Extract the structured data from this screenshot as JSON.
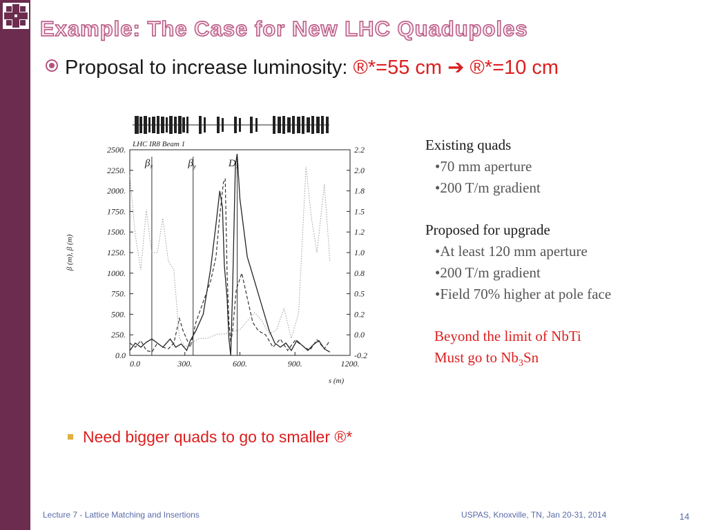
{
  "title": "Example: The Case for New LHC Quadupoles",
  "bullet1": {
    "prefix": "Proposal to increase luminosity: ",
    "sym1": "®",
    "star1": "*",
    "val1": "=55 cm",
    "arrow": "➔",
    "sym2": "®",
    "star2": "*",
    "val2": "=10 cm"
  },
  "bullet2": {
    "text": "Need bigger quads to go to smaller ",
    "sym": "®",
    "star": "*"
  },
  "right": {
    "existing_heading": "Existing quads",
    "existing_items": [
      "70 mm aperture",
      "200 T/m gradient"
    ],
    "proposed_heading": "Proposed for upgrade",
    "proposed_items": [
      "At least 120 mm aperture",
      "200 T/m gradient",
      "Field 70% higher at pole face"
    ],
    "limit_line": "Beyond the limit of NbTi",
    "must_prefix": "Must go to Nb",
    "must_sub": "3",
    "must_suffix": "Sn"
  },
  "footer": {
    "left": "Lecture 7 - Lattice Matching and Insertions",
    "middle": "USPAS, Knoxville, TN, Jan 20-31, 2014",
    "page": "14"
  },
  "chart_data": {
    "type": "line",
    "title": "LHC IR8 Beam 1",
    "xlabel": "s (m)",
    "ylabel": "β (m), β (m)",
    "xlim": [
      0,
      1200
    ],
    "ylim": [
      0,
      2500
    ],
    "y2lim": [
      -0.2,
      2.2
    ],
    "xticks": [
      "0.0",
      "300.",
      "600.",
      "900.",
      "1200."
    ],
    "yticks": [
      "0.0",
      "250.",
      "500.",
      "750.",
      "1000.",
      "1250.",
      "1500.",
      "1750.",
      "2000.",
      "2250.",
      "2500."
    ],
    "y2ticks": [
      "-0.2",
      "0.0",
      "0.2",
      "0.5",
      "0.8",
      "1.0",
      "1.2",
      "1.5",
      "1.8",
      "2.0",
      "2.2"
    ],
    "curve_labels": [
      {
        "text": "β",
        "sub": "x",
        "s": 120
      },
      {
        "text": "β",
        "sub": "y",
        "s": 355
      },
      {
        "text": "D",
        "sub": "x",
        "s": 575
      }
    ],
    "marker_lines_s": [
      120,
      345,
      585
    ],
    "series": [
      {
        "style": "solid",
        "axis": "left",
        "points": [
          [
            0,
            60
          ],
          [
            30,
            150
          ],
          [
            60,
            100
          ],
          [
            90,
            160
          ],
          [
            120,
            200
          ],
          [
            150,
            150
          ],
          [
            180,
            100
          ],
          [
            220,
            200
          ],
          [
            250,
            100
          ],
          [
            280,
            140
          ],
          [
            310,
            60
          ],
          [
            330,
            180
          ],
          [
            360,
            300
          ],
          [
            400,
            500
          ],
          [
            440,
            1050
          ],
          [
            470,
            1600
          ],
          [
            490,
            2000
          ],
          [
            505,
            1800
          ],
          [
            515,
            1100
          ],
          [
            530,
            700
          ],
          [
            540,
            200
          ],
          [
            550,
            0
          ],
          [
            560,
            800
          ],
          [
            575,
            2300
          ],
          [
            585,
            2450
          ],
          [
            600,
            1900
          ],
          [
            640,
            1200
          ],
          [
            680,
            900
          ],
          [
            720,
            600
          ],
          [
            760,
            300
          ],
          [
            790,
            150
          ],
          [
            820,
            100
          ],
          [
            850,
            150
          ],
          [
            880,
            60
          ],
          [
            910,
            180
          ],
          [
            940,
            120
          ],
          [
            970,
            60
          ],
          [
            1000,
            130
          ],
          [
            1030,
            180
          ],
          [
            1060,
            80
          ],
          [
            1090,
            40
          ]
        ]
      },
      {
        "style": "dashed",
        "axis": "left",
        "points": [
          [
            0,
            150
          ],
          [
            30,
            100
          ],
          [
            60,
            180
          ],
          [
            90,
            60
          ],
          [
            120,
            40
          ],
          [
            150,
            150
          ],
          [
            180,
            100
          ],
          [
            210,
            80
          ],
          [
            240,
            150
          ],
          [
            270,
            450
          ],
          [
            290,
            300
          ],
          [
            310,
            200
          ],
          [
            330,
            100
          ],
          [
            360,
            400
          ],
          [
            400,
            650
          ],
          [
            440,
            900
          ],
          [
            470,
            1200
          ],
          [
            490,
            1700
          ],
          [
            510,
            2100
          ],
          [
            520,
            2150
          ],
          [
            530,
            1000
          ],
          [
            540,
            400
          ],
          [
            550,
            150
          ],
          [
            560,
            300
          ],
          [
            580,
            800
          ],
          [
            610,
            1000
          ],
          [
            640,
            700
          ],
          [
            670,
            400
          ],
          [
            700,
            300
          ],
          [
            740,
            250
          ],
          [
            780,
            100
          ],
          [
            820,
            200
          ],
          [
            860,
            60
          ],
          [
            900,
            180
          ],
          [
            940,
            120
          ],
          [
            980,
            60
          ],
          [
            1020,
            190
          ],
          [
            1060,
            80
          ],
          [
            1090,
            180
          ]
        ]
      },
      {
        "style": "dotted",
        "axis": "right",
        "points": [
          [
            0,
            1.9
          ],
          [
            30,
            1.2
          ],
          [
            60,
            0.8
          ],
          [
            90,
            1.5
          ],
          [
            120,
            1.0
          ],
          [
            150,
            1.0
          ],
          [
            180,
            1.4
          ],
          [
            210,
            0.9
          ],
          [
            240,
            0.8
          ],
          [
            270,
            0.0
          ],
          [
            300,
            -0.1
          ],
          [
            340,
            -0.05
          ],
          [
            380,
            0.0
          ],
          [
            420,
            0.0
          ],
          [
            480,
            0.05
          ],
          [
            520,
            0.05
          ],
          [
            560,
            0.08
          ],
          [
            600,
            0.1
          ],
          [
            640,
            0.2
          ],
          [
            680,
            0.3
          ],
          [
            720,
            0.2
          ],
          [
            760,
            0.05
          ],
          [
            800,
            0.1
          ],
          [
            840,
            0.35
          ],
          [
            880,
            0.0
          ],
          [
            920,
            0.3
          ],
          [
            960,
            2.0
          ],
          [
            990,
            1.4
          ],
          [
            1020,
            1.0
          ],
          [
            1060,
            1.8
          ],
          [
            1090,
            0.9
          ]
        ]
      }
    ]
  }
}
